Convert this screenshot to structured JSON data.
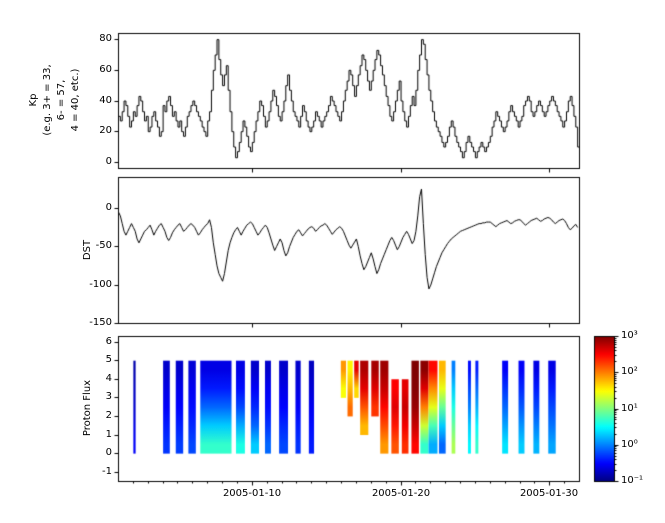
{
  "x_axis": {
    "xlim": [
      1,
      32
    ],
    "ticks": [
      {
        "label": "2005-01-10",
        "v": 10
      },
      {
        "label": "2005-01-20",
        "v": 20
      },
      {
        "label": "2005-01-30",
        "v": 30
      }
    ]
  },
  "chart_data": [
    {
      "type": "line",
      "style": "step",
      "ylabel": "Kp\n(e.g. 3+ = 33,\n6- = 57,\n4 = 40, etc.)",
      "ylim": [
        -4,
        84
      ],
      "yticks": [
        0,
        20,
        40,
        60,
        80
      ],
      "x_start": 1,
      "x_step": 0.125,
      "line_color": "#000000",
      "values": [
        30,
        27,
        33,
        40,
        37,
        30,
        23,
        27,
        33,
        30,
        37,
        43,
        40,
        33,
        27,
        30,
        20,
        23,
        30,
        33,
        27,
        23,
        17,
        20,
        37,
        33,
        40,
        43,
        37,
        30,
        33,
        27,
        23,
        27,
        20,
        17,
        23,
        30,
        33,
        37,
        40,
        37,
        33,
        30,
        27,
        23,
        20,
        17,
        27,
        33,
        47,
        60,
        70,
        80,
        67,
        57,
        50,
        57,
        63,
        47,
        33,
        20,
        10,
        3,
        7,
        13,
        20,
        27,
        23,
        17,
        10,
        7,
        13,
        20,
        27,
        33,
        40,
        37,
        30,
        23,
        27,
        33,
        40,
        47,
        43,
        37,
        30,
        27,
        33,
        40,
        50,
        57,
        47,
        40,
        33,
        30,
        27,
        23,
        30,
        37,
        33,
        27,
        23,
        20,
        23,
        27,
        33,
        30,
        27,
        23,
        27,
        30,
        33,
        37,
        43,
        40,
        37,
        33,
        30,
        27,
        33,
        40,
        47,
        53,
        60,
        57,
        50,
        43,
        50,
        57,
        63,
        70,
        67,
        60,
        53,
        47,
        53,
        60,
        67,
        73,
        70,
        63,
        57,
        50,
        43,
        37,
        30,
        27,
        33,
        40,
        47,
        53,
        40,
        33,
        27,
        23,
        30,
        37,
        43,
        37,
        47,
        60,
        70,
        80,
        77,
        67,
        57,
        47,
        40,
        33,
        27,
        23,
        20,
        17,
        13,
        10,
        13,
        17,
        23,
        27,
        23,
        17,
        13,
        10,
        7,
        3,
        7,
        13,
        17,
        13,
        10,
        7,
        3,
        7,
        10,
        13,
        10,
        7,
        10,
        13,
        17,
        23,
        27,
        33,
        30,
        27,
        23,
        20,
        23,
        27,
        33,
        37,
        33,
        30,
        27,
        23,
        27,
        30,
        37,
        40,
        43,
        40,
        33,
        30,
        33,
        37,
        40,
        37,
        33,
        30,
        33,
        37,
        40,
        43,
        40,
        37,
        33,
        30,
        27,
        23,
        27,
        33,
        40,
        43,
        37,
        30,
        23,
        10
      ]
    },
    {
      "type": "line",
      "style": "plain",
      "ylabel": "DST",
      "ylim": [
        -150,
        40
      ],
      "yticks": [
        0,
        -50,
        -100,
        -150
      ],
      "x_start": 1,
      "x_step": 0.125,
      "line_color": "#000000",
      "values": [
        -5,
        -10,
        -20,
        -30,
        -35,
        -30,
        -25,
        -20,
        -25,
        -30,
        -40,
        -45,
        -40,
        -35,
        -30,
        -28,
        -25,
        -22,
        -28,
        -35,
        -30,
        -26,
        -22,
        -20,
        -25,
        -30,
        -38,
        -42,
        -38,
        -32,
        -28,
        -25,
        -22,
        -20,
        -25,
        -30,
        -28,
        -25,
        -22,
        -20,
        -22,
        -25,
        -30,
        -35,
        -32,
        -28,
        -25,
        -22,
        -20,
        -15,
        -25,
        -45,
        -60,
        -75,
        -85,
        -90,
        -95,
        -85,
        -70,
        -55,
        -45,
        -38,
        -32,
        -28,
        -25,
        -30,
        -35,
        -30,
        -26,
        -22,
        -20,
        -18,
        -20,
        -25,
        -30,
        -35,
        -32,
        -28,
        -25,
        -22,
        -25,
        -32,
        -40,
        -48,
        -55,
        -50,
        -45,
        -40,
        -45,
        -55,
        -62,
        -58,
        -50,
        -44,
        -38,
        -34,
        -30,
        -28,
        -32,
        -36,
        -33,
        -30,
        -27,
        -25,
        -24,
        -26,
        -30,
        -28,
        -25,
        -23,
        -22,
        -20,
        -22,
        -26,
        -30,
        -34,
        -31,
        -28,
        -26,
        -24,
        -26,
        -30,
        -36,
        -42,
        -48,
        -52,
        -48,
        -44,
        -40,
        -50,
        -62,
        -72,
        -80,
        -76,
        -70,
        -64,
        -58,
        -66,
        -76,
        -85,
        -80,
        -72,
        -66,
        -60,
        -54,
        -48,
        -42,
        -38,
        -42,
        -48,
        -54,
        -50,
        -44,
        -38,
        -34,
        -30,
        -34,
        -40,
        -46,
        -42,
        -30,
        -10,
        15,
        25,
        -20,
        -60,
        -90,
        -105,
        -100,
        -92,
        -84,
        -76,
        -70,
        -64,
        -58,
        -54,
        -50,
        -46,
        -43,
        -40,
        -38,
        -36,
        -34,
        -32,
        -30,
        -29,
        -28,
        -27,
        -26,
        -25,
        -24,
        -23,
        -22,
        -21,
        -20,
        -20,
        -19,
        -19,
        -18,
        -18,
        -18,
        -20,
        -22,
        -24,
        -22,
        -20,
        -19,
        -18,
        -17,
        -16,
        -18,
        -20,
        -19,
        -17,
        -16,
        -15,
        -15,
        -17,
        -20,
        -22,
        -20,
        -18,
        -16,
        -15,
        -14,
        -13,
        -15,
        -17,
        -16,
        -14,
        -13,
        -12,
        -13,
        -15,
        -18,
        -20,
        -18,
        -16,
        -15,
        -14,
        -16,
        -20,
        -25,
        -28,
        -26,
        -23,
        -21,
        -25
      ]
    },
    {
      "type": "heatmap",
      "ylabel": "Proton Flux",
      "ylim": [
        -1.5,
        6.3
      ],
      "yticks": [
        -1,
        0,
        1,
        2,
        3,
        4,
        5,
        6
      ],
      "colormap": "jet",
      "flux_log_range": [
        -1,
        3
      ],
      "colorbar": {
        "ticks": [
          {
            "label": "10³",
            "v": 3
          },
          {
            "label": "10²",
            "v": 2
          },
          {
            "label": "10¹",
            "v": 1
          },
          {
            "label": "10⁰",
            "v": 0
          },
          {
            "label": "10⁻¹",
            "v": -1
          }
        ]
      },
      "strips": [
        {
          "x0": 2.0,
          "x1": 2.15,
          "y0": 0,
          "y1": 5,
          "f": [
            0.3,
            0.25,
            0.2,
            0.18,
            0.15
          ]
        },
        {
          "x0": 4.0,
          "x1": 4.45,
          "y0": 0,
          "y1": 5,
          "f": [
            0.5,
            0.4,
            0.3,
            0.25,
            0.2
          ]
        },
        {
          "x0": 4.85,
          "x1": 5.35,
          "y0": 0,
          "y1": 5,
          "f": [
            0.55,
            0.42,
            0.32,
            0.26,
            0.2
          ]
        },
        {
          "x0": 5.7,
          "x1": 6.2,
          "y0": 0,
          "y1": 5,
          "f": [
            0.6,
            0.45,
            0.35,
            0.28,
            0.22
          ]
        },
        {
          "x0": 6.5,
          "x1": 8.6,
          "y0": 0,
          "y1": 5,
          "f": [
            5,
            2,
            0.8,
            0.4,
            0.25
          ]
        },
        {
          "x0": 8.9,
          "x1": 9.5,
          "y0": 0,
          "y1": 5,
          "f": [
            4,
            1.5,
            0.6,
            0.35,
            0.25
          ]
        },
        {
          "x0": 9.9,
          "x1": 10.45,
          "y0": 0,
          "y1": 5,
          "f": [
            2,
            0.8,
            0.45,
            0.3,
            0.2
          ]
        },
        {
          "x0": 10.85,
          "x1": 11.25,
          "y0": 0,
          "y1": 5,
          "f": [
            0.8,
            0.5,
            0.35,
            0.28,
            0.2
          ]
        },
        {
          "x0": 11.8,
          "x1": 12.4,
          "y0": 0,
          "y1": 5,
          "f": [
            0.6,
            0.45,
            0.32,
            0.26,
            0.2
          ]
        },
        {
          "x0": 12.9,
          "x1": 13.25,
          "y0": 0,
          "y1": 5,
          "f": [
            0.5,
            0.4,
            0.3,
            0.24,
            0.2
          ]
        },
        {
          "x0": 13.8,
          "x1": 14.15,
          "y0": 0,
          "y1": 5,
          "f": [
            0.4,
            0.35,
            0.28,
            0.22,
            0.18
          ]
        },
        {
          "x0": 15.95,
          "x1": 16.3,
          "y0": 3,
          "y1": 5,
          "f": [
            30,
            80
          ]
        },
        {
          "x0": 16.4,
          "x1": 16.75,
          "y0": 2,
          "y1": 5,
          "f": [
            120,
            60,
            35
          ]
        },
        {
          "x0": 16.85,
          "x1": 17.15,
          "y0": 3,
          "y1": 5,
          "f": [
            45,
            400
          ]
        },
        {
          "x0": 17.25,
          "x1": 17.8,
          "y0": 1,
          "y1": 5,
          "f": [
            60,
            150,
            400,
            650
          ]
        },
        {
          "x0": 18.0,
          "x1": 18.5,
          "y0": 2,
          "y1": 5,
          "f": [
            200,
            420,
            700
          ]
        },
        {
          "x0": 18.6,
          "x1": 19.15,
          "y0": 0,
          "y1": 5,
          "f": [
            80,
            160,
            300,
            520,
            750
          ]
        },
        {
          "x0": 19.35,
          "x1": 19.85,
          "y0": 0,
          "y1": 4,
          "f": [
            150,
            260,
            420,
            320
          ]
        },
        {
          "x0": 20.05,
          "x1": 20.5,
          "y0": 0,
          "y1": 4,
          "f": [
            210,
            350,
            520,
            400
          ]
        },
        {
          "x0": 20.7,
          "x1": 21.2,
          "y0": 0,
          "y1": 5,
          "f": [
            300,
            520,
            800,
            950,
            1000
          ]
        },
        {
          "x0": 21.3,
          "x1": 21.85,
          "y0": 0,
          "y1": 5,
          "f": [
            5,
            20,
            100,
            420,
            900
          ]
        },
        {
          "x0": 21.85,
          "x1": 22.45,
          "y0": 0,
          "y1": 5,
          "f": [
            1.5,
            6,
            25,
            90,
            300
          ]
        },
        {
          "x0": 22.55,
          "x1": 23.0,
          "y0": 0,
          "y1": 5,
          "f": [
            0.8,
            2,
            8,
            26,
            60
          ]
        },
        {
          "x0": 23.4,
          "x1": 23.65,
          "y0": 0,
          "y1": 5,
          "f": [
            15,
            8,
            4,
            2,
            1
          ]
        },
        {
          "x0": 24.5,
          "x1": 24.7,
          "y0": 0,
          "y1": 5,
          "f": [
            3,
            2,
            1,
            0.6,
            0.35
          ]
        },
        {
          "x0": 25.0,
          "x1": 25.2,
          "y0": 0,
          "y1": 5,
          "f": [
            5,
            3,
            1.5,
            0.8,
            0.4
          ]
        },
        {
          "x0": 26.8,
          "x1": 27.2,
          "y0": 0,
          "y1": 5,
          "f": [
            2.5,
            1.4,
            0.8,
            0.5,
            0.3
          ]
        },
        {
          "x0": 27.9,
          "x1": 28.3,
          "y0": 0,
          "y1": 5,
          "f": [
            2,
            1.2,
            0.7,
            0.45,
            0.3
          ]
        },
        {
          "x0": 28.9,
          "x1": 29.3,
          "y0": 0,
          "y1": 5,
          "f": [
            1.6,
            1.0,
            0.6,
            0.4,
            0.25
          ]
        },
        {
          "x0": 29.9,
          "x1": 30.4,
          "y0": 0,
          "y1": 5,
          "f": [
            1.4,
            0.9,
            0.6,
            0.4,
            0.25
          ]
        }
      ]
    }
  ]
}
